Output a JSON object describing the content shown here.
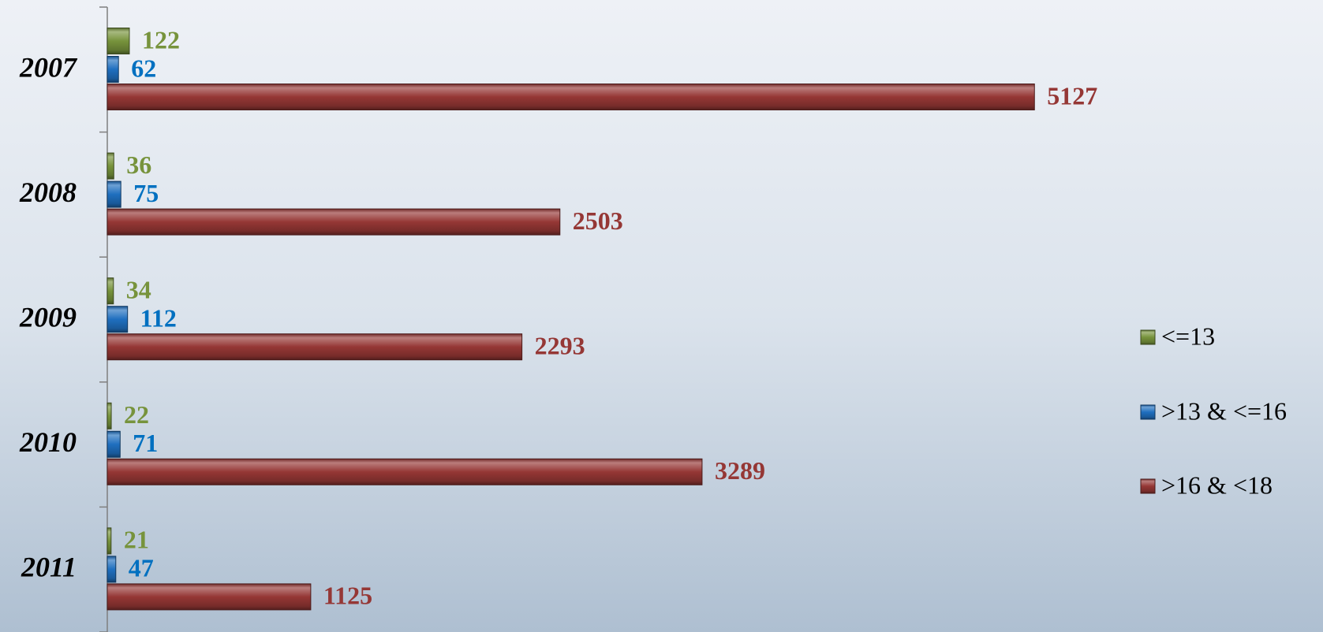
{
  "chart_data": {
    "type": "bar",
    "orientation": "horizontal",
    "categories": [
      "2007",
      "2008",
      "2009",
      "2010",
      "2011"
    ],
    "series": [
      {
        "name": "<=13",
        "color": "#77933c",
        "values": [
          122,
          36,
          34,
          22,
          21
        ]
      },
      {
        "name": ">13 & <=16",
        "color": "#1f6fbf",
        "values": [
          62,
          75,
          112,
          71,
          47
        ]
      },
      {
        "name": ">16 & <18",
        "color": "#953735",
        "values": [
          5127,
          2503,
          2293,
          3289,
          1125
        ]
      }
    ],
    "label_colors": [
      "#77933c",
      "#0070c0",
      "#953735"
    ],
    "xlim": [
      0,
      6500
    ],
    "legend": "right"
  }
}
